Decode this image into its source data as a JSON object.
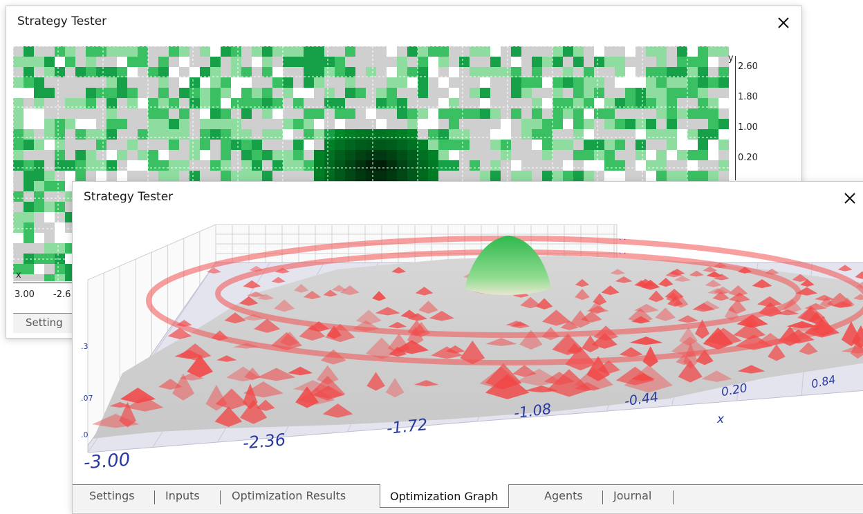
{
  "back_window": {
    "title": "Strategy Tester",
    "close_symbol": "✕",
    "y_axis_letter": "y",
    "x_axis_letter": "x",
    "y_ticks": [
      "2.60",
      "1.80",
      "1.00",
      "0.20"
    ],
    "x_ticks": [
      "3.00",
      "-2.6"
    ],
    "visible_tab": "Setting"
  },
  "front_window": {
    "title": "Strategy Tester",
    "close_symbol": "✕",
    "x_axis_letter": "x",
    "x_ticks": [
      "-3.00",
      "-2.36",
      "-1.72",
      "-1.08",
      "-0.44",
      "0.20",
      "0.84"
    ],
    "tabs": [
      "Settings",
      "Inputs",
      "Optimization Results",
      "Optimization Graph",
      "Agents",
      "Journal"
    ],
    "active_tab": "Optimization Graph"
  },
  "colors": {
    "heatmap_background": "#cfcfcf",
    "heatmap_green": "#1e9e4a",
    "heatmap_peak": "#003300",
    "surface_red": "#f25555",
    "surface_gray": "#d0d0d0",
    "surface_peak_green": "#4cc766",
    "tick_text": "#2a3aa0"
  }
}
